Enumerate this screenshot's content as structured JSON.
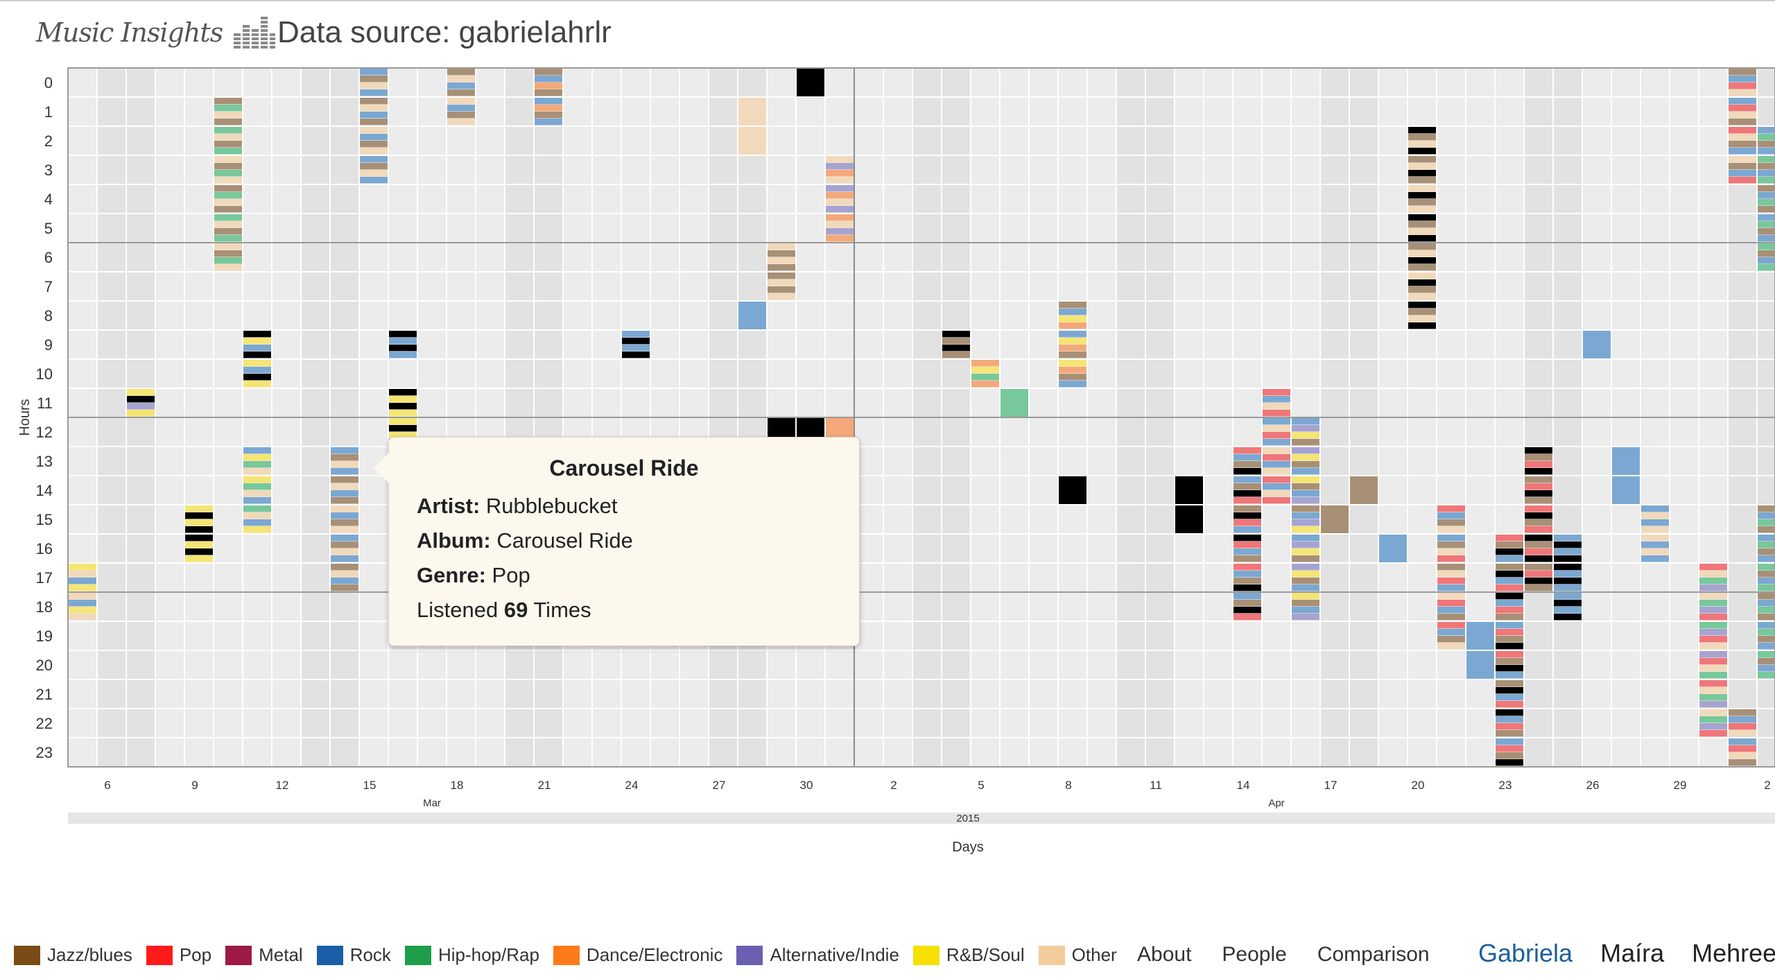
{
  "header": {
    "logo_text": "Music Insights",
    "source_label": "Data source: gabrielahrlr"
  },
  "chart": {
    "y_label": "Hours",
    "x_label": "Days",
    "hours": [
      "0",
      "1",
      "2",
      "3",
      "4",
      "5",
      "6",
      "7",
      "8",
      "9",
      "10",
      "11",
      "12",
      "13",
      "14",
      "15",
      "16",
      "17",
      "18",
      "19",
      "20",
      "21",
      "22",
      "23"
    ],
    "day_ticks": [
      "6",
      "9",
      "12",
      "15",
      "18",
      "21",
      "24",
      "27",
      "30",
      "2",
      "5",
      "8",
      "11",
      "14",
      "17",
      "20",
      "23",
      "26",
      "29",
      "2"
    ],
    "month_labels": [
      "Mar",
      "Apr"
    ],
    "year_label": "2015"
  },
  "chart_data": {
    "type": "heatmap",
    "x_axis": "date",
    "y_axis": "hour of day",
    "x_start": "2015-03-05",
    "x_end": "2015-04-03",
    "hours": [
      0,
      23
    ],
    "genre_colors": {
      "Jazz/blues": "#a89076",
      "Pop": "#f07678",
      "Metal": "#a35670",
      "Rock": "#7ba8d2",
      "Hip-hop/Rap": "#77c89a",
      "Dance/Electronic": "#f5a87a",
      "Alternative/Indie": "#a7a3d0",
      "R&B/Soul": "#f5e574",
      "Other": "#f1d9bb"
    },
    "note_color_black": "#000000",
    "listening_blocks": [
      {
        "day": "2015-03-15",
        "hours": [
          0,
          1,
          2,
          3
        ],
        "genres": [
          "Rock",
          "Jazz/blues",
          "Other"
        ]
      },
      {
        "day": "2015-03-18",
        "hours": [
          0,
          1
        ],
        "genres": [
          "Rock",
          "Jazz/blues",
          "Other"
        ]
      },
      {
        "day": "2015-03-21",
        "hours": [
          0,
          1
        ],
        "genres": [
          "Rock",
          "Dance/Electronic",
          "Jazz/blues"
        ]
      },
      {
        "day": "2015-03-30",
        "hours": [
          0
        ],
        "genres": [
          "Black"
        ]
      },
      {
        "day": "2015-03-10",
        "hours": [
          1,
          2,
          3,
          4,
          5,
          6
        ],
        "genres": [
          "Other",
          "Jazz/blues",
          "Hip-hop/Rap"
        ]
      },
      {
        "day": "2015-03-28",
        "hours": [
          1,
          2
        ],
        "genres": [
          "Other"
        ]
      },
      {
        "day": "2015-03-31",
        "hours": [
          3,
          4,
          5
        ],
        "genres": [
          "Other",
          "Alternative/Indie",
          "Dance/Electronic"
        ]
      },
      {
        "day": "2015-03-29",
        "hours": [
          6,
          7
        ],
        "genres": [
          "Jazz/blues",
          "Other"
        ]
      },
      {
        "day": "2015-03-28",
        "hours": [
          8
        ],
        "genres": [
          "Rock"
        ]
      },
      {
        "day": "2015-03-11",
        "hours": [
          9,
          10
        ],
        "genres": [
          "Black",
          "R&B/Soul",
          "Rock"
        ]
      },
      {
        "day": "2015-03-16",
        "hours": [
          9
        ],
        "genres": [
          "Black",
          "Rock"
        ]
      },
      {
        "day": "2015-03-24",
        "hours": [
          9
        ],
        "genres": [
          "Black",
          "Rock"
        ]
      },
      {
        "day": "2015-04-04",
        "hours": [
          9
        ],
        "genres": [
          "Black",
          "Jazz/blues"
        ]
      },
      {
        "day": "2015-04-05",
        "hours": [
          10
        ],
        "genres": [
          "Hip-hop/Rap",
          "Dance/Electronic",
          "R&B/Soul"
        ]
      },
      {
        "day": "2015-04-08",
        "hours": [
          8,
          9,
          10
        ],
        "genres": [
          "R&B/Soul",
          "Dance/Electronic",
          "Jazz/blues",
          "Rock"
        ]
      },
      {
        "day": "2015-03-07",
        "hours": [
          11
        ],
        "genres": [
          "R&B/Soul",
          "Black",
          "Alternative/Indie"
        ]
      },
      {
        "day": "2015-03-16",
        "hours": [
          11,
          12
        ],
        "genres": [
          "Black",
          "R&B/Soul"
        ]
      },
      {
        "day": "2015-03-16",
        "hours": [
          14
        ],
        "genres": [
          "Black"
        ]
      },
      {
        "day": "2015-04-08",
        "hours": [
          14
        ],
        "genres": [
          "Black"
        ]
      },
      {
        "day": "2015-04-06",
        "hours": [
          11
        ],
        "genres": [
          "Hip-hop/Rap"
        ]
      },
      {
        "day": "2015-03-29",
        "hours": [
          12
        ],
        "genres": [
          "Black"
        ]
      },
      {
        "day": "2015-03-30",
        "hours": [
          12
        ],
        "genres": [
          "Black"
        ]
      },
      {
        "day": "2015-03-31",
        "hours": [
          12
        ],
        "genres": [
          "Dance/Electronic"
        ]
      },
      {
        "day": "2015-03-11",
        "hours": [
          13,
          14,
          15
        ],
        "genres": [
          "R&B/Soul",
          "Hip-hop/Rap",
          "Other",
          "Rock"
        ]
      },
      {
        "day": "2015-03-14",
        "hours": [
          13,
          14,
          15,
          16,
          17
        ],
        "genres": [
          "Rock",
          "Jazz/blues",
          "Other"
        ]
      },
      {
        "day": "2015-03-09",
        "hours": [
          15,
          16
        ],
        "genres": [
          "Black",
          "R&B/Soul"
        ]
      },
      {
        "day": "2015-03-05",
        "hours": [
          17,
          18
        ],
        "genres": [
          "Other",
          "Rock",
          "R&B/Soul"
        ]
      },
      {
        "day": "2015-04-12",
        "hours": [
          14,
          15
        ],
        "genres": [
          "Black"
        ]
      },
      {
        "day": "2015-04-14",
        "hours": [
          13,
          14,
          15,
          16,
          17,
          18
        ],
        "genres": [
          "Pop",
          "Rock",
          "Jazz/blues",
          "Black"
        ]
      },
      {
        "day": "2015-04-15",
        "hours": [
          11,
          12,
          13,
          14
        ],
        "genres": [
          "Rock",
          "Other",
          "Pop"
        ]
      },
      {
        "day": "2015-04-16",
        "hours": [
          12,
          13,
          14,
          15,
          16,
          17,
          18
        ],
        "genres": [
          "R&B/Soul",
          "Jazz/blues",
          "Rock",
          "Alternative/Indie"
        ]
      },
      {
        "day": "2015-04-17",
        "hours": [
          15
        ],
        "genres": [
          "Jazz/blues"
        ]
      },
      {
        "day": "2015-04-18",
        "hours": [
          14
        ],
        "genres": [
          "Jazz/blues"
        ]
      },
      {
        "day": "2015-04-19",
        "hours": [
          16
        ],
        "genres": [
          "Rock"
        ]
      },
      {
        "day": "2015-04-20",
        "hours": [
          2,
          3,
          4,
          5,
          6,
          7,
          8
        ],
        "genres": [
          "Other",
          "Black",
          "Jazz/blues"
        ]
      },
      {
        "day": "2015-04-21",
        "hours": [
          15,
          16,
          17,
          18,
          19
        ],
        "genres": [
          "Rock",
          "Jazz/blues",
          "Other",
          "Pop"
        ]
      },
      {
        "day": "2015-04-22",
        "hours": [
          19,
          20
        ],
        "genres": [
          "Rock"
        ]
      },
      {
        "day": "2015-04-23",
        "hours": [
          16,
          17,
          18,
          19,
          20,
          21,
          22,
          23
        ],
        "genres": [
          "Rock",
          "Pop",
          "Jazz/blues",
          "Black"
        ]
      },
      {
        "day": "2015-04-24",
        "hours": [
          13,
          14,
          15,
          16,
          17
        ],
        "genres": [
          "Jazz/blues",
          "Pop",
          "Black"
        ]
      },
      {
        "day": "2015-04-25",
        "hours": [
          16,
          17,
          18
        ],
        "genres": [
          "Black",
          "Rock"
        ]
      },
      {
        "day": "2015-04-26",
        "hours": [
          9
        ],
        "genres": [
          "Rock"
        ]
      },
      {
        "day": "2015-04-27",
        "hours": [
          13,
          14
        ],
        "genres": [
          "Rock"
        ]
      },
      {
        "day": "2015-04-28",
        "hours": [
          15,
          16
        ],
        "genres": [
          "Rock",
          "Other"
        ]
      },
      {
        "day": "2015-04-30",
        "hours": [
          17,
          18,
          19,
          20,
          21,
          22
        ],
        "genres": [
          "Other",
          "Hip-hop/Rap",
          "Alternative/Indie",
          "Pop"
        ]
      },
      {
        "day": "2015-05-01",
        "hours": [
          0,
          1,
          2,
          3,
          22,
          23
        ],
        "genres": [
          "Jazz/blues",
          "Rock",
          "Pop",
          "Other"
        ]
      },
      {
        "day": "2015-05-02",
        "hours": [
          2,
          3,
          4,
          5,
          6,
          15,
          16,
          17,
          18,
          19,
          20
        ],
        "genres": [
          "Rock",
          "Hip-hop/Rap",
          "Jazz/blues"
        ]
      }
    ]
  },
  "tooltip": {
    "title": "Carousel Ride",
    "artist_label": "Artist:",
    "artist": "Rubblebucket",
    "album_label": "Album:",
    "album": "Carousel Ride",
    "genre_label": "Genre:",
    "genre": "Pop",
    "listened_prefix": "Listened",
    "listened_count": "69",
    "listened_suffix": "Times"
  },
  "legend": [
    {
      "label": "Jazz/blues",
      "color": "#7a4b16"
    },
    {
      "label": "Pop",
      "color": "#ff1a1a"
    },
    {
      "label": "Metal",
      "color": "#9c1a45"
    },
    {
      "label": "Rock",
      "color": "#1a5ea8"
    },
    {
      "label": "Hip-hop/Rap",
      "color": "#1d9f4a"
    },
    {
      "label": "Dance/Electronic",
      "color": "#ff7a1a"
    },
    {
      "label": "Alternative/Indie",
      "color": "#6a60b0"
    },
    {
      "label": "R&B/Soul",
      "color": "#f5e000"
    },
    {
      "label": "Other",
      "color": "#f2cc9a"
    }
  ],
  "nav": {
    "about": "About",
    "people": "People",
    "comparison": "Comparison"
  },
  "users": [
    "Gabriela",
    "Maíra",
    "Mehreen"
  ],
  "active_user": "Gabriela"
}
